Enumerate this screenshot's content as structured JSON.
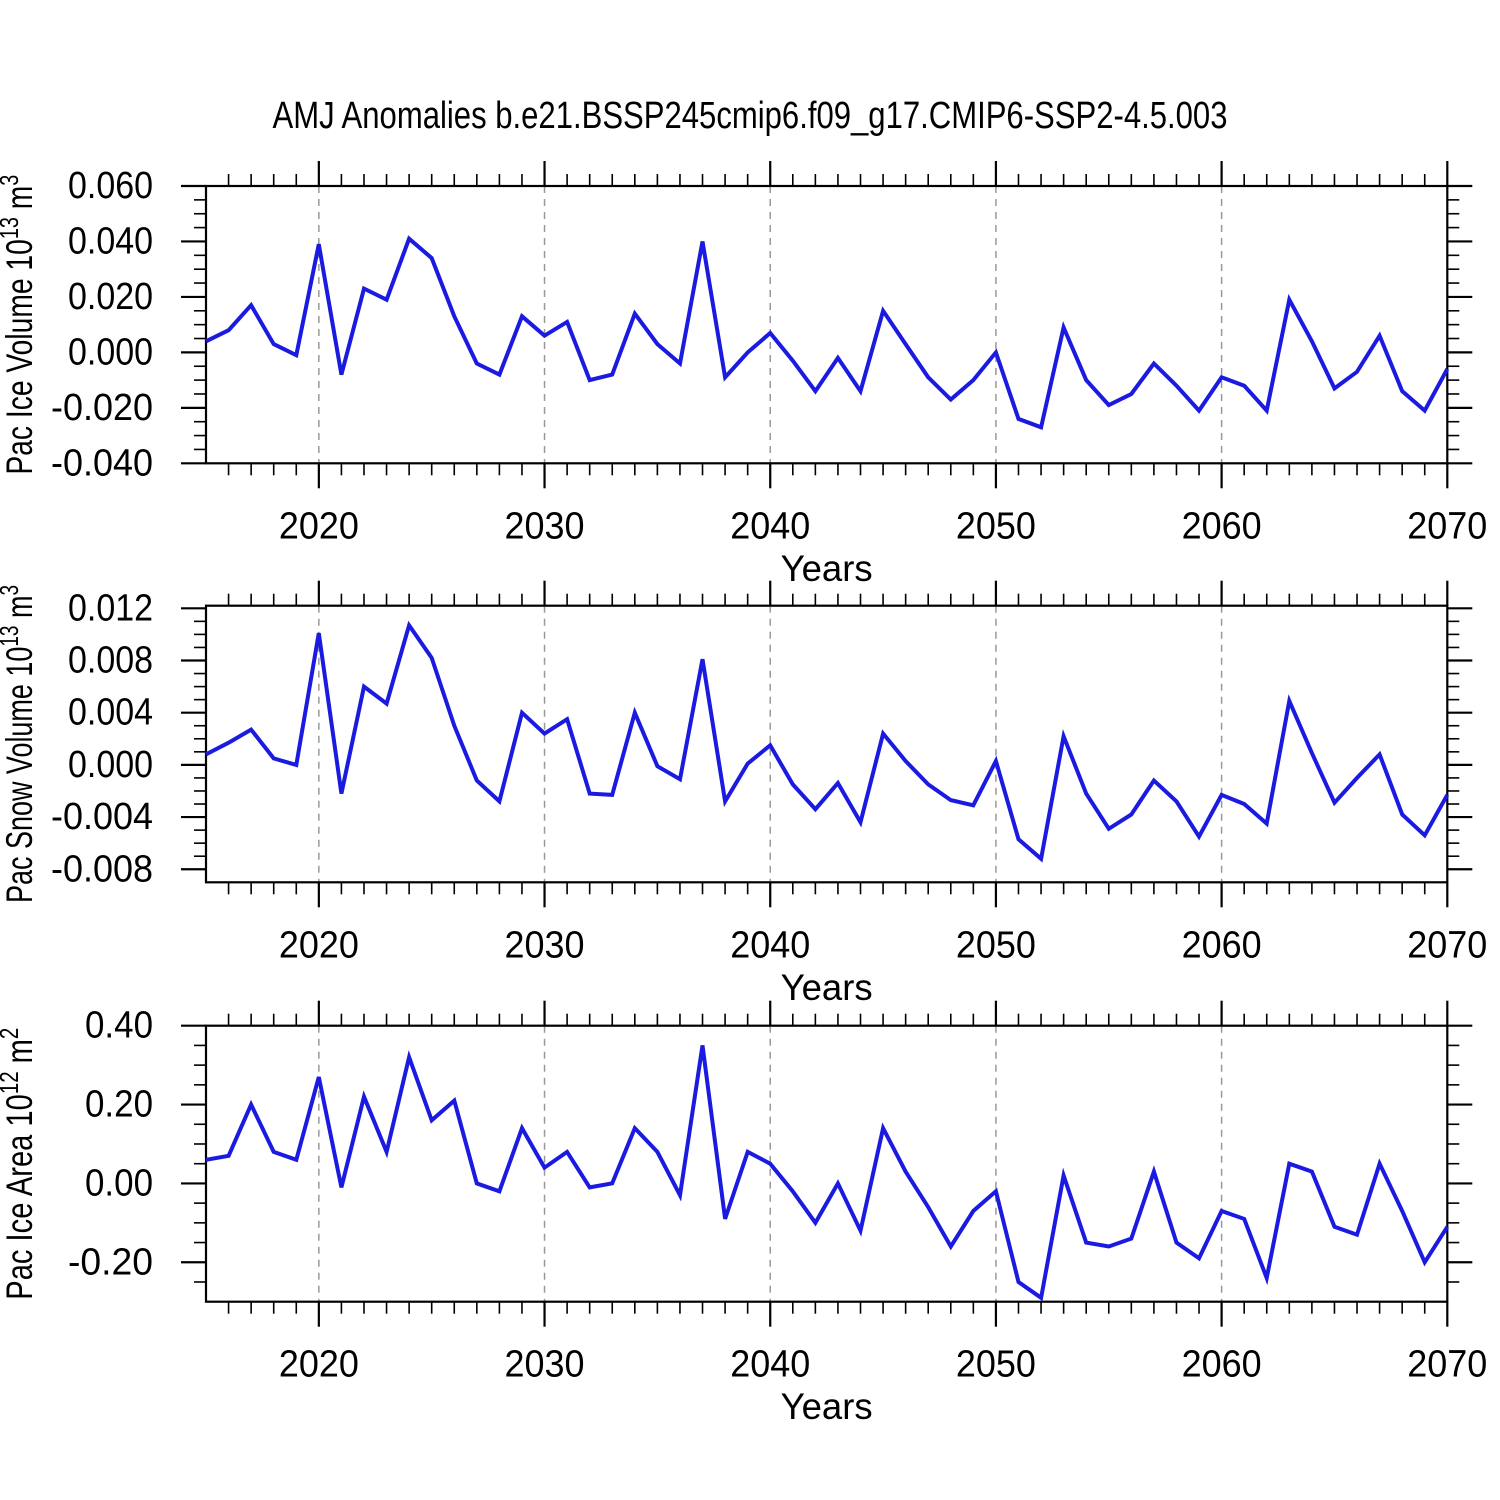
{
  "title": "AMJ Anomalies b.e21.BSSP245cmip6.f09_g17.CMIP6-SSP2-4.5.003",
  "colors": {
    "line": "#1a1ae0",
    "grid": "#999999",
    "axis": "#000000",
    "background": "#ffffff"
  },
  "x_axis": {
    "label": "Years",
    "start_year": 2015,
    "end_year": 2070,
    "major_tick_years": [
      2020,
      2030,
      2040,
      2050,
      2060,
      2070
    ],
    "major_tick_labels": [
      "2020",
      "2030",
      "2040",
      "2050",
      "2060",
      "2070"
    ],
    "gridline_years": [
      2020,
      2030,
      2040,
      2050,
      2060
    ],
    "minor_tick_step_years": 1
  },
  "chart_data": [
    {
      "type": "line",
      "ylabel": "Pac Ice Volume 10^13 m^3",
      "ylabel_parts": [
        {
          "t": "Pac Ice Volume 10"
        },
        {
          "t": "13",
          "sup": true
        },
        {
          "t": " m"
        },
        {
          "t": "3",
          "sup": true
        }
      ],
      "ylabel_textlen": 300,
      "xlabel": "Years",
      "x_start": 2015,
      "x_step": 1,
      "ylim": [
        -0.04,
        0.06
      ],
      "ytick_values": [
        0.06,
        0.04,
        0.02,
        0.0,
        -0.02,
        -0.04
      ],
      "ytick_labels": [
        "0.060",
        "0.040",
        "0.020",
        "0.000",
        "-0.020",
        "-0.040"
      ],
      "y_minor_step": 0.005,
      "y_major_step": 0.02,
      "values": [
        0.004,
        0.008,
        0.017,
        0.003,
        -0.001,
        0.039,
        -0.008,
        0.023,
        0.019,
        0.041,
        0.034,
        0.013,
        -0.004,
        -0.008,
        0.013,
        0.006,
        0.011,
        -0.01,
        -0.008,
        0.014,
        0.003,
        -0.004,
        0.04,
        -0.009,
        0.0,
        0.007,
        -0.003,
        -0.014,
        -0.002,
        -0.014,
        0.015,
        0.003,
        -0.009,
        -0.017,
        -0.01,
        0.0,
        -0.024,
        -0.027,
        0.009,
        -0.01,
        -0.019,
        -0.015,
        -0.004,
        -0.012,
        -0.021,
        -0.009,
        -0.012,
        -0.021,
        0.019,
        0.004,
        -0.013,
        -0.007,
        0.006,
        -0.014,
        -0.021,
        -0.006
      ]
    },
    {
      "type": "line",
      "ylabel": "Pac Snow Volume 10^13 m^3",
      "ylabel_parts": [
        {
          "t": "Pac Snow Volume 10"
        },
        {
          "t": "13",
          "sup": true
        },
        {
          "t": " m"
        },
        {
          "t": "3",
          "sup": true
        }
      ],
      "ylabel_textlen": 318,
      "xlabel": "Years",
      "x_start": 2015,
      "x_step": 1,
      "ylim": [
        -0.009,
        0.0122
      ],
      "ytick_values": [
        0.012,
        0.008,
        0.004,
        0.0,
        -0.004,
        -0.008
      ],
      "ytick_labels": [
        "0.012",
        "0.008",
        "0.004",
        "0.000",
        "-0.004",
        "-0.008"
      ],
      "y_minor_step": 0.001,
      "y_major_step": 0.004,
      "values": [
        0.0008,
        0.0017,
        0.0027,
        0.0005,
        0.0,
        0.0101,
        -0.0022,
        0.006,
        0.0047,
        0.0107,
        0.0082,
        0.003,
        -0.0012,
        -0.0028,
        0.004,
        0.0024,
        0.0035,
        -0.0022,
        -0.0023,
        0.004,
        -0.0001,
        -0.0011,
        0.0081,
        -0.0028,
        0.0001,
        0.0015,
        -0.0015,
        -0.0034,
        -0.0014,
        -0.0044,
        0.0024,
        0.0003,
        -0.0015,
        -0.0027,
        -0.0031,
        0.0003,
        -0.0057,
        -0.0072,
        0.0022,
        -0.0022,
        -0.0049,
        -0.0038,
        -0.0012,
        -0.0028,
        -0.0055,
        -0.0023,
        -0.003,
        -0.0045,
        0.0049,
        0.0009,
        -0.0029,
        -0.001,
        0.0008,
        -0.0038,
        -0.0054,
        -0.0023
      ]
    },
    {
      "type": "line",
      "ylabel": "Pac Ice Area 10^12 m^2",
      "ylabel_parts": [
        {
          "t": "Pac Ice Area 10"
        },
        {
          "t": "12",
          "sup": true
        },
        {
          "t": " m"
        },
        {
          "t": "2",
          "sup": true
        }
      ],
      "ylabel_textlen": 272,
      "xlabel": "Years",
      "x_start": 2015,
      "x_step": 1,
      "ylim": [
        -0.3,
        0.4
      ],
      "ytick_values": [
        0.4,
        0.2,
        0.0,
        -0.2
      ],
      "ytick_labels": [
        "0.40",
        "0.20",
        "0.00",
        "-0.20"
      ],
      "y_minor_step": 0.05,
      "y_major_step": 0.2,
      "values": [
        0.06,
        0.07,
        0.2,
        0.08,
        0.06,
        0.27,
        -0.01,
        0.22,
        0.08,
        0.32,
        0.16,
        0.21,
        0.0,
        -0.02,
        0.14,
        0.04,
        0.08,
        -0.01,
        0.0,
        0.14,
        0.08,
        -0.03,
        0.35,
        -0.09,
        0.08,
        0.05,
        -0.02,
        -0.1,
        0.0,
        -0.12,
        0.14,
        0.03,
        -0.06,
        -0.16,
        -0.07,
        -0.02,
        -0.25,
        -0.29,
        0.02,
        -0.15,
        -0.16,
        -0.14,
        0.03,
        -0.15,
        -0.19,
        -0.07,
        -0.09,
        -0.24,
        0.05,
        0.03,
        -0.11,
        -0.13,
        0.05,
        -0.07,
        -0.2,
        -0.11
      ]
    }
  ]
}
